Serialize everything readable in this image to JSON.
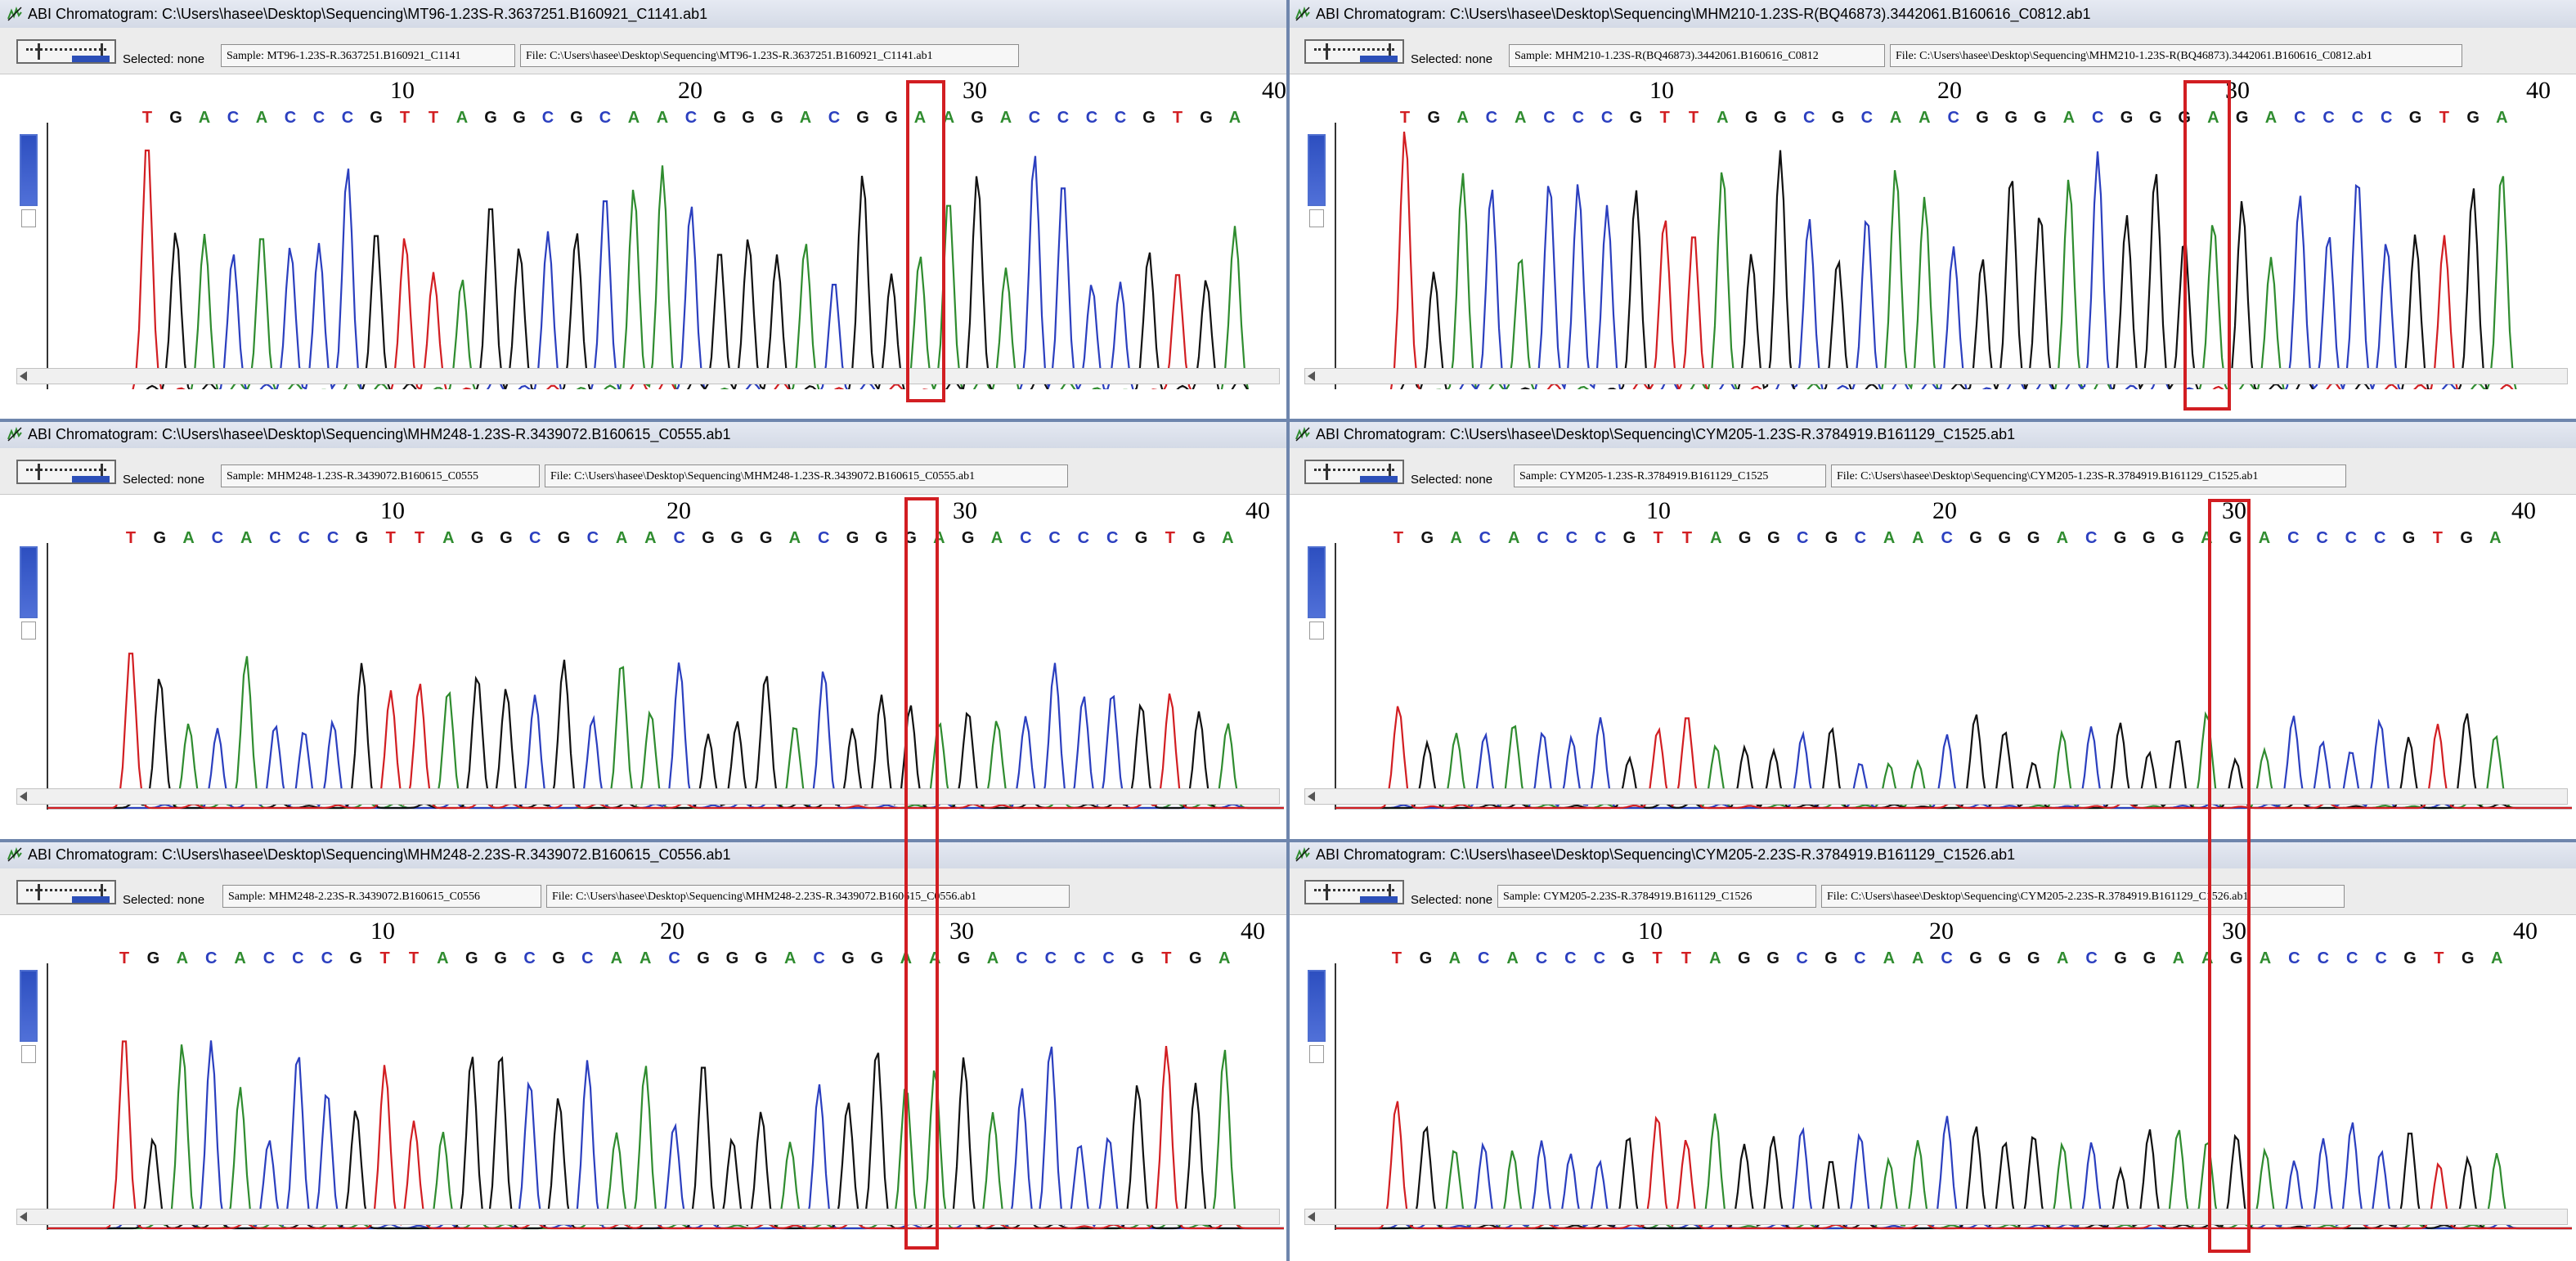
{
  "colors": {
    "A": "#2f8c2f",
    "C": "#2b3fbf",
    "G": "#111111",
    "T": "#d21e22",
    "highlight": "#d21e22"
  },
  "common": {
    "selected_label": "Selected: none",
    "sequence": [
      "T",
      "G",
      "A",
      "C",
      "A",
      "C",
      "C",
      "C",
      "G",
      "T",
      "T",
      "A",
      "G",
      "G",
      "C",
      "G",
      "C",
      "A",
      "A",
      "C",
      "G",
      "G",
      "G",
      "A",
      "C",
      "G",
      "G",
      "?",
      "A",
      "G",
      "A",
      "C",
      "C",
      "C",
      "C",
      "G",
      "T",
      "G",
      "A"
    ],
    "position_labels": [
      "10",
      "20",
      "30",
      "40"
    ]
  },
  "panels": [
    {
      "title": "ABI Chromatogram: C:\\Users\\hasee\\Desktop\\Sequencing\\MT96-1.23S-R.3637251.B160921_C1141.ab1",
      "sample": "Sample: MT96-1.23S-R.3637251.B160921_C1141",
      "file": "File: C:\\Users\\hasee\\Desktop\\Sequencing\\MT96-1.23S-R.3637251.B160921_C1141.ab1",
      "base28": "A"
    },
    {
      "title": "ABI Chromatogram: C:\\Users\\hasee\\Desktop\\Sequencing\\MHM210-1.23S-R(BQ46873).3442061.B160616_C0812.ab1",
      "sample": "Sample: MHM210-1.23S-R(BQ46873).3442061.B160616_C0812",
      "file": "File: C:\\Users\\hasee\\Desktop\\Sequencing\\MHM210-1.23S-R(BQ46873).3442061.B160616_C0812.ab1",
      "base28": "G"
    },
    {
      "title": "ABI Chromatogram: C:\\Users\\hasee\\Desktop\\Sequencing\\MHM248-1.23S-R.3439072.B160615_C0555.ab1",
      "sample": "Sample: MHM248-1.23S-R.3439072.B160615_C0555",
      "file": "File: C:\\Users\\hasee\\Desktop\\Sequencing\\MHM248-1.23S-R.3439072.B160615_C0555.ab1",
      "base28": "G"
    },
    {
      "title": "ABI Chromatogram: C:\\Users\\hasee\\Desktop\\Sequencing\\CYM205-1.23S-R.3784919.B161129_C1525.ab1",
      "sample": "Sample: CYM205-1.23S-R.3784919.B161129_C1525",
      "file": "File: C:\\Users\\hasee\\Desktop\\Sequencing\\CYM205-1.23S-R.3784919.B161129_C1525.ab1",
      "base28": "G"
    },
    {
      "title": "ABI Chromatogram: C:\\Users\\hasee\\Desktop\\Sequencing\\MHM248-2.23S-R.3439072.B160615_C0556.ab1",
      "sample": "Sample: MHM248-2.23S-R.3439072.B160615_C0556",
      "file": "File: C:\\Users\\hasee\\Desktop\\Sequencing\\MHM248-2.23S-R.3439072.B160615_C0556.ab1",
      "base28": "A"
    },
    {
      "title": "ABI Chromatogram: C:\\Users\\hasee\\Desktop\\Sequencing\\CYM205-2.23S-R.3784919.B161129_C1526.ab1",
      "sample": "Sample: CYM205-2.23S-R.3784919.B161129_C1526",
      "file": "File: C:\\Users\\hasee\\Desktop\\Sequencing\\CYM205-2.23S-R.3784919.B161129_C1526.ab1",
      "base28": "A"
    }
  ]
}
